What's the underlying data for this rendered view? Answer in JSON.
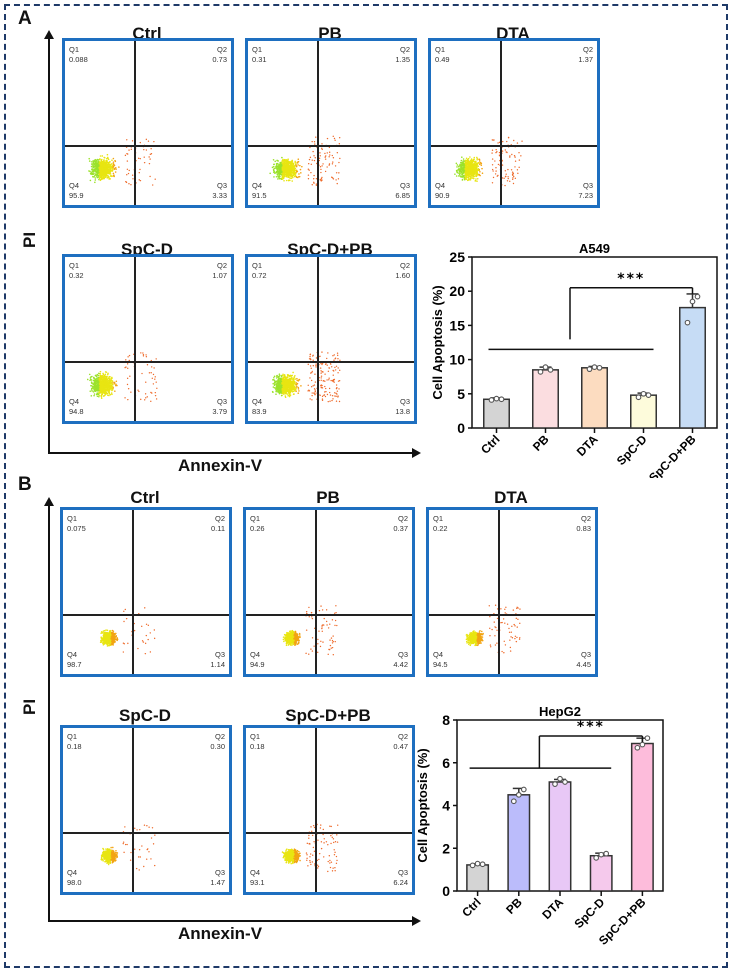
{
  "panels": [
    {
      "letter": "A",
      "y_axis_label": "PI",
      "x_axis_label": "Annexin-V",
      "flow_plots": [
        {
          "title": "Ctrl",
          "q1": {
            "label": "Q1",
            "value": "0.088"
          },
          "q2": {
            "label": "Q2",
            "value": "0.73"
          },
          "q3": {
            "label": "Q3",
            "value": "3.33"
          },
          "q4": {
            "label": "Q4",
            "value": "95.9"
          }
        },
        {
          "title": "PB",
          "q1": {
            "label": "Q1",
            "value": "0.31"
          },
          "q2": {
            "label": "Q2",
            "value": "1.35"
          },
          "q3": {
            "label": "Q3",
            "value": "6.85"
          },
          "q4": {
            "label": "Q4",
            "value": "91.5"
          }
        },
        {
          "title": "DTA",
          "q1": {
            "label": "Q1",
            "value": "0.49"
          },
          "q2": {
            "label": "Q2",
            "value": "1.37"
          },
          "q3": {
            "label": "Q3",
            "value": "7.23"
          },
          "q4": {
            "label": "Q4",
            "value": "90.9"
          }
        },
        {
          "title": "SpC-D",
          "q1": {
            "label": "Q1",
            "value": "0.32"
          },
          "q2": {
            "label": "Q2",
            "value": "1.07"
          },
          "q3": {
            "label": "Q3",
            "value": "3.79"
          },
          "q4": {
            "label": "Q4",
            "value": "94.8"
          }
        },
        {
          "title": "SpC-D+PB",
          "q1": {
            "label": "Q1",
            "value": "0.72"
          },
          "q2": {
            "label": "Q2",
            "value": "1.60"
          },
          "q3": {
            "label": "Q3",
            "value": "13.8"
          },
          "q4": {
            "label": "Q4",
            "value": "83.9"
          }
        }
      ]
    },
    {
      "letter": "B",
      "y_axis_label": "PI",
      "x_axis_label": "Annexin-V",
      "flow_plots": [
        {
          "title": "Ctrl",
          "q1": {
            "label": "Q1",
            "value": "0.075"
          },
          "q2": {
            "label": "Q2",
            "value": "0.11"
          },
          "q3": {
            "label": "Q3",
            "value": "1.14"
          },
          "q4": {
            "label": "Q4",
            "value": "98.7"
          }
        },
        {
          "title": "PB",
          "q1": {
            "label": "Q1",
            "value": "0.26"
          },
          "q2": {
            "label": "Q2",
            "value": "0.37"
          },
          "q3": {
            "label": "Q3",
            "value": "4.42"
          },
          "q4": {
            "label": "Q4",
            "value": "94.9"
          }
        },
        {
          "title": "DTA",
          "q1": {
            "label": "Q1",
            "value": "0.22"
          },
          "q2": {
            "label": "Q2",
            "value": "0.83"
          },
          "q3": {
            "label": "Q3",
            "value": "4.45"
          },
          "q4": {
            "label": "Q4",
            "value": "94.5"
          }
        },
        {
          "title": "SpC-D",
          "q1": {
            "label": "Q1",
            "value": "0.18"
          },
          "q2": {
            "label": "Q2",
            "value": "0.30"
          },
          "q3": {
            "label": "Q3",
            "value": "1.47"
          },
          "q4": {
            "label": "Q4",
            "value": "98.0"
          }
        },
        {
          "title": "SpC-D+PB",
          "q1": {
            "label": "Q1",
            "value": "0.18"
          },
          "q2": {
            "label": "Q2",
            "value": "0.47"
          },
          "q3": {
            "label": "Q3",
            "value": "6.24"
          },
          "q4": {
            "label": "Q4",
            "value": "93.1"
          }
        }
      ]
    }
  ],
  "chart_data": [
    {
      "type": "bar",
      "title": "A549",
      "xlabel": "",
      "ylabel": "Cell Apoptosis (%)",
      "ylim": [
        0,
        25
      ],
      "yticks": [
        0,
        5,
        10,
        15,
        20,
        25
      ],
      "categories": [
        "Ctrl",
        "PB",
        "DTA",
        "SpC-D",
        "SpC-D+PB"
      ],
      "values": [
        4.2,
        8.5,
        8.8,
        4.8,
        17.6
      ],
      "errors": [
        0.2,
        0.4,
        0.2,
        0.3,
        2.0
      ],
      "points": [
        [
          4.1,
          4.3,
          4.2
        ],
        [
          8.2,
          8.9,
          8.5
        ],
        [
          8.6,
          8.9,
          8.8
        ],
        [
          4.5,
          5.0,
          4.8
        ],
        [
          15.4,
          18.5,
          19.2
        ]
      ],
      "colors": [
        "#d4d4d4",
        "#fbdde0",
        "#fcdcc0",
        "#fdfbdb",
        "#c6dcf5"
      ],
      "significance": {
        "label": "***",
        "group_from": [
          "Ctrl",
          "SpC-D"
        ],
        "to": "SpC-D+PB",
        "group_line_y": 11.5,
        "bracket_y": 20.5
      },
      "grid": false
    },
    {
      "type": "bar",
      "title": "HepG2",
      "xlabel": "",
      "ylabel": "Cell Apoptosis (%)",
      "ylim": [
        0,
        8
      ],
      "yticks": [
        0,
        2,
        4,
        6,
        8
      ],
      "categories": [
        "Ctrl",
        "PB",
        "DTA",
        "SpC-D",
        "SpC-D+PB"
      ],
      "values": [
        1.22,
        4.5,
        5.1,
        1.65,
        6.9
      ],
      "errors": [
        0.05,
        0.3,
        0.12,
        0.12,
        0.25
      ],
      "points": [
        [
          1.2,
          1.28,
          1.25
        ],
        [
          4.2,
          4.5,
          4.75
        ],
        [
          5.0,
          5.25,
          5.1
        ],
        [
          1.55,
          1.7,
          1.75
        ],
        [
          6.7,
          6.85,
          7.15
        ]
      ],
      "colors": [
        "#d4d4d4",
        "#bbbcfb",
        "#e8c8f6",
        "#f5c9ec",
        "#fdbcdb"
      ],
      "significance": {
        "label": "***",
        "group_from": [
          "Ctrl",
          "SpC-D"
        ],
        "to": "SpC-D+PB",
        "group_line_y": 5.75,
        "bracket_y": 7.25
      },
      "grid": false
    }
  ]
}
